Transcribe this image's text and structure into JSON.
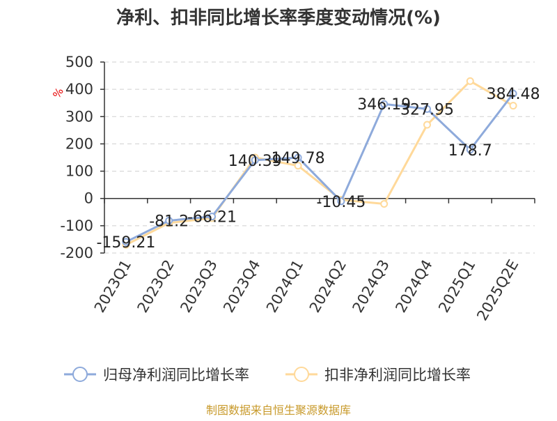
{
  "chart_data": {
    "type": "line",
    "title": "净利、扣非同比增长率季度变动情况(%)",
    "ylabel": "%",
    "xlabel": "",
    "categories": [
      "2023Q1",
      "2023Q2",
      "2023Q3",
      "2023Q4",
      "2024Q1",
      "2024Q2",
      "2024Q3",
      "2024Q4",
      "2025Q1",
      "2025Q2E"
    ],
    "ylim": [
      -200,
      500
    ],
    "yticks": [
      500,
      400,
      300,
      200,
      100,
      0,
      -100,
      -200
    ],
    "grid": true,
    "legend_position": "bottom",
    "series": [
      {
        "name": "归母净利润同比增长率",
        "color": "#8eaadb",
        "values": [
          -159.21,
          -81.2,
          -66.21,
          140.39,
          149.78,
          -10.45,
          346.19,
          327.95,
          178.7,
          384.48
        ],
        "labels": [
          "-159.21",
          "-81.2",
          "-66.21",
          "140.39",
          "149.78",
          "-10.45",
          "346.19",
          "327.95",
          "178.7",
          "384.48"
        ]
      },
      {
        "name": "扣非净利润同比增长率",
        "color": "#ffd99a",
        "values": [
          -170,
          -90,
          -72,
          150,
          120,
          -5,
          -20,
          270,
          430,
          340
        ]
      }
    ],
    "source": "制图数据来自恒生聚源数据库"
  }
}
